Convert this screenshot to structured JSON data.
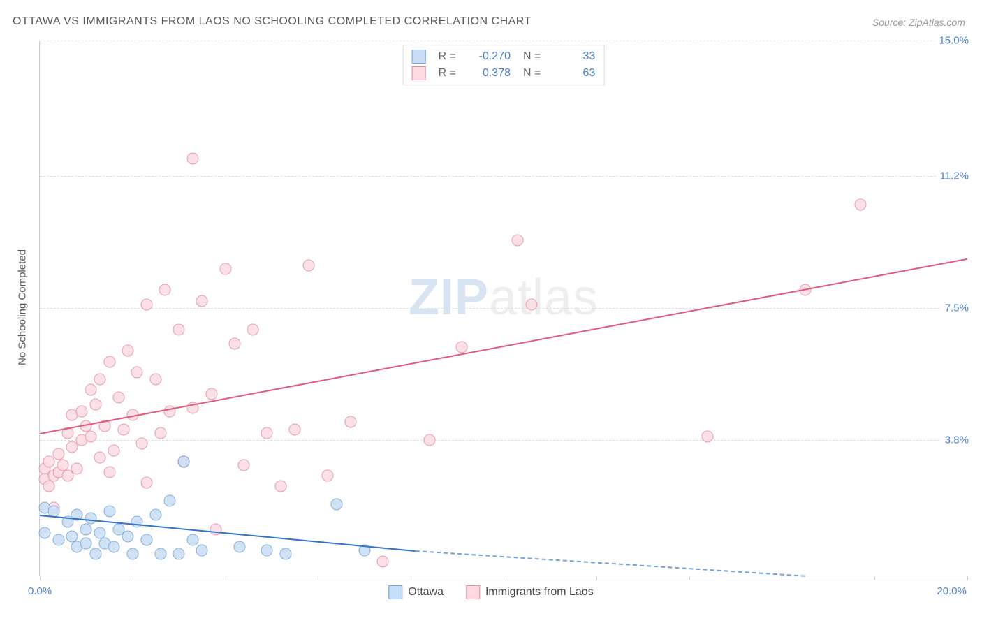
{
  "title": "OTTAWA VS IMMIGRANTS FROM LAOS NO SCHOOLING COMPLETED CORRELATION CHART",
  "source": "Source: ZipAtlas.com",
  "y_axis_title": "No Schooling Completed",
  "watermark": {
    "left": "ZIP",
    "right": "atlas"
  },
  "chart": {
    "type": "scatter",
    "xlim": [
      0,
      20
    ],
    "ylim": [
      0,
      15
    ],
    "x_corner_min": "0.0%",
    "x_corner_max": "20.0%",
    "x_tick_step": 2,
    "y_gridlines": [
      {
        "v": 3.8,
        "label": "3.8%"
      },
      {
        "v": 7.5,
        "label": "7.5%"
      },
      {
        "v": 11.2,
        "label": "11.2%"
      },
      {
        "v": 15.0,
        "label": "15.0%"
      }
    ],
    "colors": {
      "series_a_fill": "#c9ddf4",
      "series_a_stroke": "#6fa3d9",
      "series_a_line": "#2f74c6",
      "series_b_fill": "#fcdbe3",
      "series_b_stroke": "#e48ba2",
      "series_b_line": "#e05a7d",
      "grid": "#dddddd",
      "axis": "#cccccc",
      "tick_label": "#4a7ec9"
    },
    "marker_radius": 7.5,
    "line_width": 2
  },
  "stats": {
    "rows": [
      {
        "swatch": "a",
        "r_label": "R =",
        "r": "-0.270",
        "n_label": "N =",
        "n": "33"
      },
      {
        "swatch": "b",
        "r_label": "R =",
        "r": "0.378",
        "n_label": "N =",
        "n": "63"
      }
    ]
  },
  "legend": {
    "items": [
      {
        "swatch": "a",
        "label": "Ottawa"
      },
      {
        "swatch": "b",
        "label": "Immigrants from Laos"
      }
    ]
  },
  "series_a": {
    "trend": {
      "x1": 0,
      "y1": 1.7,
      "x2": 8.1,
      "y2": 0.7,
      "dash_to_x": 16.5,
      "dash_to_y": 0.0
    },
    "points": [
      [
        0.1,
        1.9
      ],
      [
        0.1,
        1.2
      ],
      [
        0.3,
        1.8
      ],
      [
        0.4,
        1.0
      ],
      [
        0.6,
        1.5
      ],
      [
        0.7,
        1.1
      ],
      [
        0.8,
        1.7
      ],
      [
        0.8,
        0.8
      ],
      [
        1.0,
        1.3
      ],
      [
        1.0,
        0.9
      ],
      [
        1.1,
        1.6
      ],
      [
        1.2,
        0.6
      ],
      [
        1.3,
        1.2
      ],
      [
        1.4,
        0.9
      ],
      [
        1.5,
        1.8
      ],
      [
        1.6,
        0.8
      ],
      [
        1.7,
        1.3
      ],
      [
        1.9,
        1.1
      ],
      [
        2.0,
        0.6
      ],
      [
        2.1,
        1.5
      ],
      [
        2.3,
        1.0
      ],
      [
        2.5,
        1.7
      ],
      [
        2.6,
        0.6
      ],
      [
        2.8,
        2.1
      ],
      [
        3.0,
        0.6
      ],
      [
        3.1,
        3.2
      ],
      [
        3.3,
        1.0
      ],
      [
        3.5,
        0.7
      ],
      [
        4.3,
        0.8
      ],
      [
        4.9,
        0.7
      ],
      [
        5.3,
        0.6
      ],
      [
        6.4,
        2.0
      ],
      [
        7.0,
        0.7
      ]
    ]
  },
  "series_b": {
    "trend": {
      "x1": 0,
      "y1": 4.0,
      "x2": 20,
      "y2": 8.9
    },
    "points": [
      [
        0.1,
        3.0
      ],
      [
        0.1,
        2.7
      ],
      [
        0.2,
        3.2
      ],
      [
        0.2,
        2.5
      ],
      [
        0.3,
        2.8
      ],
      [
        0.3,
        1.9
      ],
      [
        0.4,
        3.4
      ],
      [
        0.4,
        2.9
      ],
      [
        0.5,
        3.1
      ],
      [
        0.6,
        4.0
      ],
      [
        0.6,
        2.8
      ],
      [
        0.7,
        3.6
      ],
      [
        0.7,
        4.5
      ],
      [
        0.8,
        3.0
      ],
      [
        0.9,
        4.6
      ],
      [
        0.9,
        3.8
      ],
      [
        1.0,
        4.2
      ],
      [
        1.1,
        5.2
      ],
      [
        1.1,
        3.9
      ],
      [
        1.2,
        4.8
      ],
      [
        1.3,
        3.3
      ],
      [
        1.3,
        5.5
      ],
      [
        1.4,
        4.2
      ],
      [
        1.5,
        6.0
      ],
      [
        1.5,
        2.9
      ],
      [
        1.6,
        3.5
      ],
      [
        1.7,
        5.0
      ],
      [
        1.8,
        4.1
      ],
      [
        1.9,
        6.3
      ],
      [
        2.0,
        4.5
      ],
      [
        2.1,
        5.7
      ],
      [
        2.2,
        3.7
      ],
      [
        2.3,
        7.6
      ],
      [
        2.3,
        2.6
      ],
      [
        2.5,
        5.5
      ],
      [
        2.6,
        4.0
      ],
      [
        2.7,
        8.0
      ],
      [
        2.8,
        4.6
      ],
      [
        3.0,
        6.9
      ],
      [
        3.1,
        3.2
      ],
      [
        3.3,
        11.7
      ],
      [
        3.3,
        4.7
      ],
      [
        3.5,
        7.7
      ],
      [
        3.7,
        5.1
      ],
      [
        3.8,
        1.3
      ],
      [
        4.0,
        8.6
      ],
      [
        4.2,
        6.5
      ],
      [
        4.4,
        3.1
      ],
      [
        4.6,
        6.9
      ],
      [
        4.9,
        4.0
      ],
      [
        5.2,
        2.5
      ],
      [
        5.5,
        4.1
      ],
      [
        5.8,
        8.7
      ],
      [
        6.2,
        2.8
      ],
      [
        6.7,
        4.3
      ],
      [
        7.4,
        0.4
      ],
      [
        8.4,
        3.8
      ],
      [
        9.1,
        6.4
      ],
      [
        10.3,
        9.4
      ],
      [
        10.6,
        7.6
      ],
      [
        14.4,
        3.9
      ],
      [
        16.5,
        8.0
      ],
      [
        17.7,
        10.4
      ]
    ]
  }
}
